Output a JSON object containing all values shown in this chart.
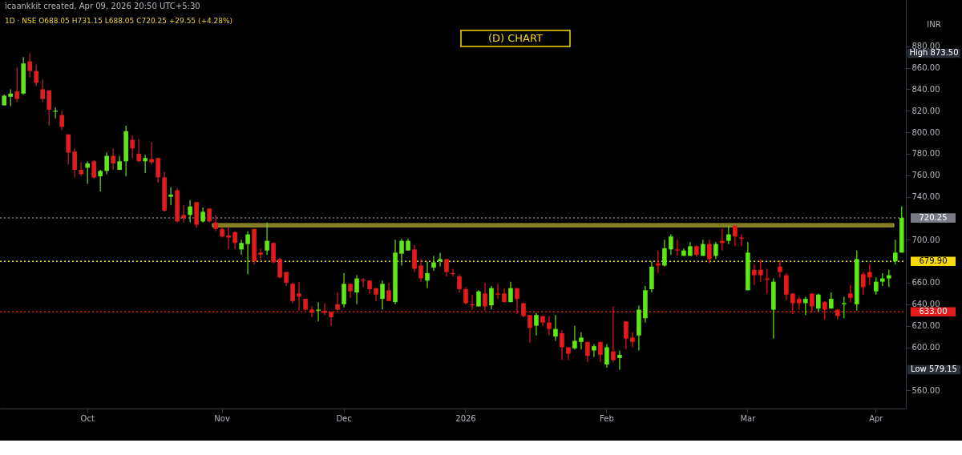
{
  "chart_data": {
    "type": "candlestick",
    "title": "(D) CHART",
    "annotations": [
      "icaankkit created, Apr 09, 2026 20:50 UTC+5:30",
      "1D · NSE  O688.05  H731.15  L688.05  C720.25  +29.55 (+4.28%)",
      "INR",
      "High 873.50",
      "Low 579.15"
    ],
    "categories": [
      null,
      null,
      null,
      null,
      null,
      null,
      null,
      null,
      null,
      null,
      null,
      null,
      null,
      "Oct",
      null,
      null,
      null,
      null,
      null,
      null,
      null,
      null,
      null,
      null,
      null,
      null,
      null,
      null,
      null,
      null,
      null,
      null,
      null,
      null,
      "Nov",
      null,
      null,
      null,
      null,
      null,
      null,
      null,
      null,
      null,
      null,
      null,
      null,
      null,
      null,
      null,
      null,
      null,
      null,
      "Dec",
      null,
      null,
      null,
      null,
      null,
      null,
      null,
      null,
      null,
      null,
      null,
      null,
      null,
      null,
      null,
      null,
      null,
      null,
      "2026",
      null,
      null,
      null,
      null,
      null,
      null,
      null,
      null,
      null,
      null,
      null,
      null,
      null,
      null,
      null,
      null,
      null,
      null,
      null,
      null,
      null,
      "Feb",
      null,
      null,
      null,
      null,
      null,
      null,
      null,
      null,
      null,
      null,
      null,
      null,
      null,
      null,
      null,
      null,
      null,
      null,
      null,
      null,
      null,
      "Mar",
      null,
      null,
      null,
      null,
      null,
      null,
      null,
      null,
      null,
      null,
      null,
      null,
      null,
      null,
      null,
      null,
      null,
      null,
      null,
      "Apr",
      null,
      null,
      null,
      null
    ],
    "ohlc": [
      [
        825,
        835,
        825,
        834
      ],
      [
        833,
        840,
        824,
        836
      ],
      [
        838,
        860,
        828,
        831
      ],
      [
        836,
        870,
        835,
        864
      ],
      [
        866,
        873.5,
        851,
        857
      ],
      [
        857,
        863,
        843,
        846
      ],
      [
        840,
        849,
        828,
        831
      ],
      [
        839,
        839,
        806,
        821
      ],
      [
        819,
        823,
        813,
        820
      ],
      [
        816,
        820,
        802,
        805
      ],
      [
        798,
        798,
        770,
        781
      ],
      [
        782,
        785,
        758,
        765
      ],
      [
        765,
        772,
        759,
        761
      ],
      [
        767,
        773,
        752,
        771
      ],
      [
        773,
        774,
        757,
        758
      ],
      [
        759,
        765,
        745,
        764
      ],
      [
        764,
        781,
        761,
        778
      ],
      [
        778,
        785,
        765,
        771
      ],
      [
        765,
        778,
        765,
        773
      ],
      [
        773,
        806,
        759,
        801
      ],
      [
        793,
        797,
        776,
        785
      ],
      [
        780,
        794,
        772,
        773
      ],
      [
        773,
        779,
        762,
        776
      ],
      [
        775,
        791,
        770,
        772
      ],
      [
        776,
        776,
        753,
        758
      ],
      [
        758,
        763,
        726,
        727
      ],
      [
        740,
        749,
        732,
        742
      ],
      [
        746,
        748,
        716,
        717
      ],
      [
        723,
        732,
        716,
        720
      ],
      [
        723,
        737,
        716,
        731
      ],
      [
        735,
        735,
        711,
        714
      ],
      [
        717,
        730,
        716,
        726
      ],
      [
        729,
        729,
        716,
        717
      ],
      [
        716,
        723,
        708,
        710
      ],
      [
        710,
        712,
        702,
        703
      ],
      [
        704,
        712,
        691,
        702
      ],
      [
        707,
        708,
        691,
        697
      ],
      [
        691,
        700,
        686,
        697
      ],
      [
        696,
        708,
        668,
        705
      ],
      [
        710,
        710,
        677,
        680
      ],
      [
        688,
        692,
        680,
        686
      ],
      [
        690,
        716,
        686,
        699
      ],
      [
        697,
        697,
        678,
        679
      ],
      [
        682,
        683,
        664,
        665
      ],
      [
        670,
        670,
        657,
        660
      ],
      [
        659,
        660,
        641,
        643
      ],
      [
        650,
        661,
        634,
        647
      ],
      [
        645,
        645,
        634,
        635
      ],
      [
        635,
        638,
        628,
        632
      ],
      [
        634,
        642,
        624,
        635
      ],
      [
        634,
        641,
        630,
        632
      ],
      [
        633,
        633,
        620,
        628
      ],
      [
        640,
        651,
        634,
        635
      ],
      [
        640,
        669,
        637,
        659
      ],
      [
        659,
        659,
        646,
        652
      ],
      [
        651,
        667,
        640,
        664
      ],
      [
        663,
        664,
        656,
        662
      ],
      [
        662,
        662,
        650,
        654
      ],
      [
        655,
        655,
        643,
        649
      ],
      [
        645,
        662,
        635,
        659
      ],
      [
        653,
        660,
        643,
        643
      ],
      [
        642,
        700,
        640,
        688
      ],
      [
        687,
        701,
        676,
        699
      ],
      [
        690,
        701,
        690,
        699
      ],
      [
        691,
        695,
        670,
        673
      ],
      [
        676,
        682,
        661,
        664
      ],
      [
        662,
        680,
        655,
        669
      ],
      [
        674,
        685,
        671,
        679
      ],
      [
        680,
        688,
        675,
        682
      ],
      [
        682,
        682,
        666,
        670
      ],
      [
        669,
        673,
        666,
        668
      ],
      [
        666,
        668,
        651,
        654
      ],
      [
        654,
        656,
        640,
        641
      ],
      [
        640,
        649,
        635,
        639
      ],
      [
        638,
        653,
        638,
        652
      ],
      [
        650,
        660,
        634,
        638
      ],
      [
        639,
        657,
        635,
        655
      ],
      [
        650,
        659,
        645,
        649
      ],
      [
        650,
        655,
        642,
        642
      ],
      [
        642,
        661,
        642,
        655
      ],
      [
        655,
        655,
        631,
        645
      ],
      [
        641,
        641,
        628,
        629
      ],
      [
        630,
        630,
        604,
        618
      ],
      [
        620,
        632,
        611,
        630
      ],
      [
        629,
        629,
        620,
        623
      ],
      [
        623,
        629,
        611,
        617
      ],
      [
        610,
        630,
        606,
        617
      ],
      [
        613,
        616,
        588,
        600
      ],
      [
        600,
        600,
        588,
        594
      ],
      [
        599,
        620,
        598,
        606
      ],
      [
        605,
        614,
        598,
        609
      ],
      [
        605,
        605,
        586,
        592
      ],
      [
        597,
        603,
        591,
        601
      ],
      [
        605,
        605,
        586,
        593
      ],
      [
        584,
        603,
        581,
        600
      ],
      [
        596,
        638,
        586,
        588
      ],
      [
        590,
        597,
        579.15,
        593
      ],
      [
        624,
        624,
        598,
        608
      ],
      [
        609,
        614,
        600,
        605
      ],
      [
        611,
        639,
        597,
        635
      ],
      [
        627,
        657,
        623,
        653
      ],
      [
        654,
        680,
        651,
        675
      ],
      [
        678,
        690,
        669,
        676
      ],
      [
        676,
        700,
        675,
        692
      ],
      [
        691,
        705,
        686,
        703
      ],
      [
        691,
        700,
        685,
        690
      ],
      [
        685,
        692,
        685,
        690
      ],
      [
        685,
        698,
        685,
        694
      ],
      [
        694,
        695,
        684,
        686
      ],
      [
        685,
        700,
        685,
        696
      ],
      [
        696,
        700,
        678,
        682
      ],
      [
        685,
        698,
        682,
        696
      ],
      [
        699,
        710,
        690,
        697
      ],
      [
        699,
        713,
        696,
        705
      ],
      [
        713,
        714,
        694,
        703
      ],
      [
        702,
        705,
        694,
        701
      ],
      [
        653,
        698,
        653,
        688
      ],
      [
        672,
        677,
        658,
        667
      ],
      [
        672,
        682,
        661,
        667
      ],
      [
        664,
        673,
        650,
        663
      ],
      [
        635,
        664,
        608,
        661
      ],
      [
        675,
        681,
        665,
        670
      ],
      [
        667,
        669,
        644,
        649
      ],
      [
        650,
        650,
        631,
        641
      ],
      [
        645,
        647,
        635,
        641
      ],
      [
        641,
        647,
        630,
        645
      ],
      [
        650,
        650,
        632,
        638
      ],
      [
        636,
        650,
        633,
        649
      ],
      [
        642,
        643,
        626,
        635
      ],
      [
        636,
        651,
        636,
        645
      ],
      [
        635,
        635,
        626,
        629
      ],
      [
        640,
        647,
        627,
        641
      ],
      [
        650,
        658,
        642,
        646
      ],
      [
        640,
        690,
        634,
        682
      ],
      [
        668,
        670,
        649,
        656
      ],
      [
        670,
        677,
        658,
        665
      ],
      [
        652,
        665,
        649,
        661
      ],
      [
        661,
        669,
        657,
        664
      ],
      [
        664,
        672,
        656,
        667
      ],
      [
        680,
        700,
        677,
        688
      ],
      [
        688.05,
        731.15,
        688.05,
        720.25
      ]
    ],
    "colors": [
      "#5ee61a",
      "#5ee61a",
      "#e31b1b",
      "#5ee61a",
      "#e31b1b",
      "#e31b1b",
      "#e31b1b",
      "#e31b1b",
      "#5ee61a",
      "#e31b1b",
      "#e31b1b",
      "#e31b1b",
      "#e31b1b",
      "#5ee61a",
      "#e31b1b",
      "#5ee61a",
      "#5ee61a",
      "#e31b1b",
      "#5ee61a",
      "#5ee61a",
      "#e31b1b",
      "#e31b1b",
      "#5ee61a",
      "#e31b1b",
      "#e31b1b",
      "#e31b1b",
      "#5ee61a",
      "#e31b1b",
      "#e31b1b",
      "#5ee61a",
      "#e31b1b",
      "#5ee61a",
      "#e31b1b",
      "#e31b1b",
      "#e31b1b",
      "#e31b1b",
      "#e31b1b",
      "#5ee61a",
      "#5ee61a",
      "#e31b1b",
      "#e31b1b",
      "#5ee61a",
      "#e31b1b",
      "#e31b1b",
      "#e31b1b",
      "#e31b1b",
      "#e31b1b",
      "#e31b1b",
      "#e31b1b",
      "#5ee61a",
      "#e31b1b",
      "#e31b1b",
      "#e31b1b",
      "#5ee61a",
      "#e31b1b",
      "#5ee61a",
      "#e31b1b",
      "#e31b1b",
      "#e31b1b",
      "#5ee61a",
      "#e31b1b",
      "#5ee61a",
      "#5ee61a",
      "#5ee61a",
      "#e31b1b",
      "#e31b1b",
      "#5ee61a",
      "#5ee61a",
      "#5ee61a",
      "#e31b1b",
      "#e31b1b",
      "#e31b1b",
      "#e31b1b",
      "#e31b1b",
      "#5ee61a",
      "#e31b1b",
      "#5ee61a",
      "#e31b1b",
      "#e31b1b",
      "#5ee61a",
      "#e31b1b",
      "#e31b1b",
      "#e31b1b",
      "#5ee61a",
      "#e31b1b",
      "#e31b1b",
      "#5ee61a",
      "#e31b1b",
      "#e31b1b",
      "#5ee61a",
      "#5ee61a",
      "#e31b1b",
      "#5ee61a",
      "#e31b1b",
      "#5ee61a",
      "#e31b1b",
      "#5ee61a",
      "#e31b1b",
      "#e31b1b",
      "#5ee61a",
      "#5ee61a",
      "#5ee61a",
      "#e31b1b",
      "#5ee61a",
      "#5ee61a",
      "#e31b1b",
      "#5ee61a",
      "#5ee61a",
      "#e31b1b",
      "#5ee61a",
      "#e31b1b",
      "#5ee61a",
      "#e31b1b",
      "#5ee61a",
      "#e31b1b",
      "#e31b1b",
      "#5ee61a",
      "#e31b1b",
      "#e31b1b",
      "#e31b1b",
      "#5ee61a",
      "#e31b1b",
      "#e31b1b",
      "#e31b1b",
      "#e31b1b",
      "#5ee61a",
      "#e31b1b",
      "#5ee61a",
      "#e31b1b",
      "#5ee61a",
      "#e31b1b",
      "#5ee61a",
      "#e31b1b",
      "#5ee61a",
      "#e31b1b",
      "#e31b1b",
      "#5ee61a",
      "#5ee61a",
      "#5ee61a",
      "#5ee61a",
      "#5ee61a"
    ],
    "ylim": [
      543,
      923
    ],
    "yticks": [
      {
        "value": 560,
        "label": "560.00"
      },
      {
        "value": 600,
        "label": "600.00"
      },
      {
        "value": 620,
        "label": "620.00"
      },
      {
        "value": 640,
        "label": "640.00"
      },
      {
        "value": 660,
        "label": "660.00"
      },
      {
        "value": 700,
        "label": "700.00"
      },
      {
        "value": 740,
        "label": "740.00"
      },
      {
        "value": 760,
        "label": "760.00"
      },
      {
        "value": 780,
        "label": "780.00"
      },
      {
        "value": 800,
        "label": "800.00"
      },
      {
        "value": 820,
        "label": "820.00"
      },
      {
        "value": 840,
        "label": "840.00"
      },
      {
        "value": 860,
        "label": "860.00"
      },
      {
        "value": 880,
        "label": "880.00"
      }
    ],
    "ref_lines": [
      {
        "axis": "y",
        "value": 720.25,
        "label": "720.25",
        "color": "#787b86",
        "line_style": "dotted"
      },
      {
        "axis": "y",
        "value": 679.9,
        "label": "679.90",
        "color": "#f5d90a",
        "line_style": "dotted"
      },
      {
        "axis": "y",
        "value": 633,
        "label": "633.00",
        "color": "#e31b1b",
        "line_style": "dotted"
      }
    ],
    "bands": [
      {
        "axis": "y",
        "from": 712,
        "to": 715,
        "color": "#8a8424"
      }
    ],
    "grid": false
  }
}
